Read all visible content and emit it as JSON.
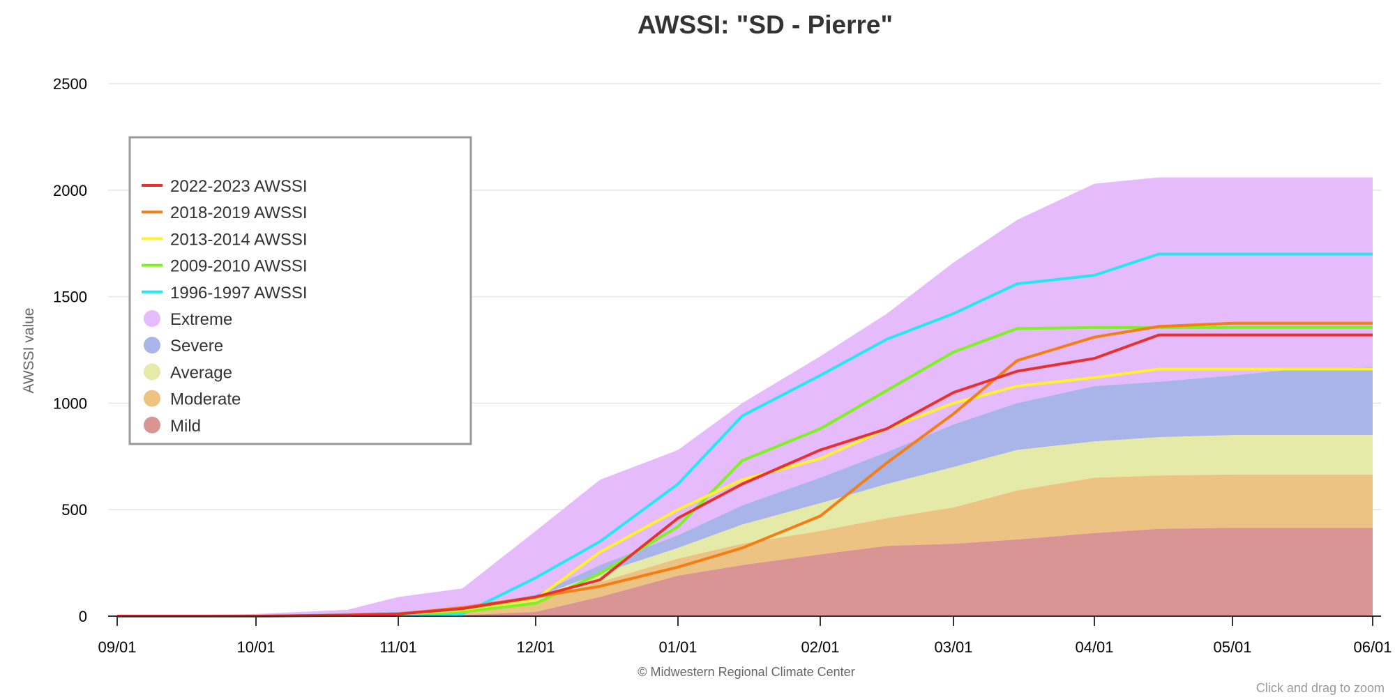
{
  "chart_data": {
    "type": "area",
    "title": "AWSSI: \"SD - Pierre\"",
    "ylabel": "AWSSI value",
    "xlabel": "",
    "ylim": [
      0,
      2500
    ],
    "yticks": [
      "0",
      "500",
      "1000",
      "1500",
      "2000",
      "2500"
    ],
    "xticks": [
      "09/01",
      "10/01",
      "11/01",
      "12/01",
      "01/01",
      "02/01",
      "03/01",
      "04/01",
      "05/01",
      "06/01"
    ],
    "x_dates": [
      "09/01",
      "10/01",
      "10/21",
      "11/01",
      "11/15",
      "12/01",
      "12/15",
      "01/01",
      "01/15",
      "02/01",
      "02/15",
      "03/01",
      "03/15",
      "04/01",
      "04/15",
      "05/01",
      "05/15",
      "06/01"
    ],
    "grid": true,
    "legend_position": "top-left",
    "bands": [
      {
        "name": "Mild",
        "color": "#d99594",
        "lower": [
          0,
          0,
          0,
          0,
          0,
          0,
          0,
          0,
          0,
          0,
          0,
          0,
          0,
          0,
          0,
          0,
          0,
          0
        ],
        "upper": [
          0,
          0,
          0,
          0,
          5,
          20,
          90,
          190,
          240,
          290,
          330,
          340,
          360,
          390,
          410,
          415,
          415,
          415
        ]
      },
      {
        "name": "Moderate",
        "color": "#edc383",
        "lower": [
          0,
          0,
          0,
          0,
          5,
          20,
          90,
          190,
          240,
          290,
          330,
          340,
          360,
          390,
          410,
          415,
          415,
          415
        ],
        "upper": [
          0,
          0,
          3,
          5,
          20,
          70,
          160,
          270,
          340,
          400,
          460,
          510,
          590,
          650,
          660,
          665,
          665,
          665
        ]
      },
      {
        "name": "Average",
        "color": "#e6eaa8",
        "lower": [
          0,
          0,
          3,
          5,
          20,
          70,
          160,
          270,
          340,
          400,
          460,
          510,
          590,
          650,
          660,
          665,
          665,
          665
        ],
        "upper": [
          0,
          0,
          5,
          10,
          30,
          90,
          200,
          320,
          430,
          530,
          620,
          700,
          780,
          820,
          840,
          850,
          850,
          850
        ]
      },
      {
        "name": "Severe",
        "color": "#a9b4e8",
        "lower": [
          0,
          0,
          5,
          10,
          30,
          90,
          200,
          320,
          430,
          530,
          620,
          700,
          780,
          820,
          840,
          850,
          850,
          850
        ],
        "upper": [
          0,
          5,
          15,
          20,
          40,
          100,
          240,
          380,
          520,
          650,
          770,
          900,
          1000,
          1080,
          1100,
          1130,
          1160,
          1170
        ]
      },
      {
        "name": "Extreme",
        "color": "#e6bbfb",
        "lower": [
          0,
          5,
          15,
          20,
          40,
          100,
          240,
          380,
          520,
          650,
          770,
          900,
          1000,
          1080,
          1100,
          1130,
          1160,
          1170
        ],
        "upper": [
          0,
          10,
          30,
          90,
          130,
          400,
          640,
          780,
          1000,
          1220,
          1420,
          1660,
          1860,
          2030,
          2060,
          2060,
          2060,
          2060
        ]
      }
    ],
    "series": [
      {
        "name": "2022-2023 AWSSI",
        "color": "#e8312f",
        "values": [
          0,
          0,
          5,
          10,
          35,
          90,
          170,
          460,
          620,
          780,
          880,
          1050,
          1150,
          1210,
          1320,
          1320,
          1320,
          1320
        ]
      },
      {
        "name": "2018-2019 AWSSI",
        "color": "#f57d14",
        "values": [
          0,
          0,
          5,
          10,
          40,
          90,
          140,
          230,
          320,
          470,
          720,
          950,
          1200,
          1310,
          1360,
          1375,
          1375,
          1375
        ]
      },
      {
        "name": "2013-2014 AWSSI",
        "color": "#fff12b",
        "values": [
          0,
          0,
          5,
          10,
          30,
          80,
          300,
          500,
          640,
          740,
          880,
          1000,
          1080,
          1120,
          1160,
          1160,
          1160,
          1160
        ]
      },
      {
        "name": "2009-2010 AWSSI",
        "color": "#7cf21f",
        "values": [
          0,
          0,
          5,
          10,
          20,
          60,
          200,
          420,
          730,
          880,
          1060,
          1240,
          1350,
          1355,
          1355,
          1355,
          1355,
          1355
        ]
      },
      {
        "name": "1996-1997 AWSSI",
        "color": "#25e7f4",
        "values": [
          0,
          0,
          3,
          5,
          10,
          180,
          350,
          620,
          940,
          1130,
          1300,
          1420,
          1560,
          1600,
          1700,
          1700,
          1700,
          1700
        ]
      }
    ],
    "credit": "© Midwestern Regional Climate Center",
    "zoom_hint": "Click and drag to zoom"
  }
}
